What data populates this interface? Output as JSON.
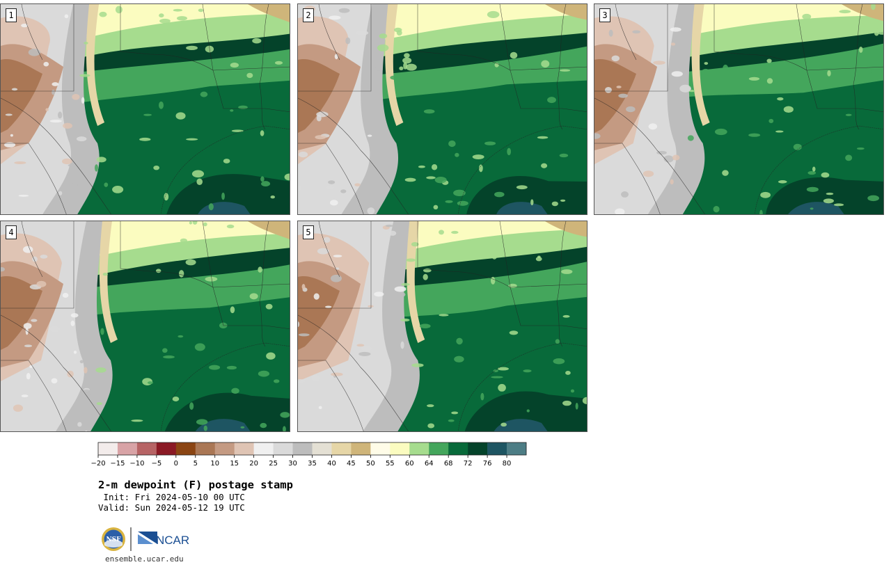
{
  "panels": [
    {
      "number": "1",
      "variant": 0
    },
    {
      "number": "2",
      "variant": 1
    },
    {
      "number": "3",
      "variant": 2
    },
    {
      "number": "4",
      "variant": 3
    },
    {
      "number": "5",
      "variant": 4
    }
  ],
  "colorbar": {
    "colors": [
      "#f3eceb",
      "#d8a3a6",
      "#b76465",
      "#8b1a25",
      "#8b4513",
      "#aa7755",
      "#c49a82",
      "#dfc4b4",
      "#f0f0f0",
      "#dadada",
      "#bdbdbd",
      "#e4e0d4",
      "#e6d6a7",
      "#cfb57a",
      "#fffce8",
      "#fbfcc0",
      "#a6dc8e",
      "#44a65c",
      "#086a3a",
      "#04432a",
      "#1e5562",
      "#4d7d85"
    ],
    "tick_labels": [
      "−20",
      "−15",
      "−10",
      "−5",
      "0",
      "5",
      "10",
      "15",
      "20",
      "25",
      "30",
      "35",
      "40",
      "45",
      "50",
      "55",
      "60",
      "64",
      "68",
      "72",
      "76",
      "80"
    ]
  },
  "title": "2-m dewpoint (F) postage stamp",
  "init": " Init: Fri 2024-05-10 00 UTC",
  "valid": "Valid: Sun 2024-05-12 19 UTC",
  "logo": {
    "nsf": "NSF",
    "ncar": "NCAR"
  },
  "url": "ensemble.ucar.edu"
}
